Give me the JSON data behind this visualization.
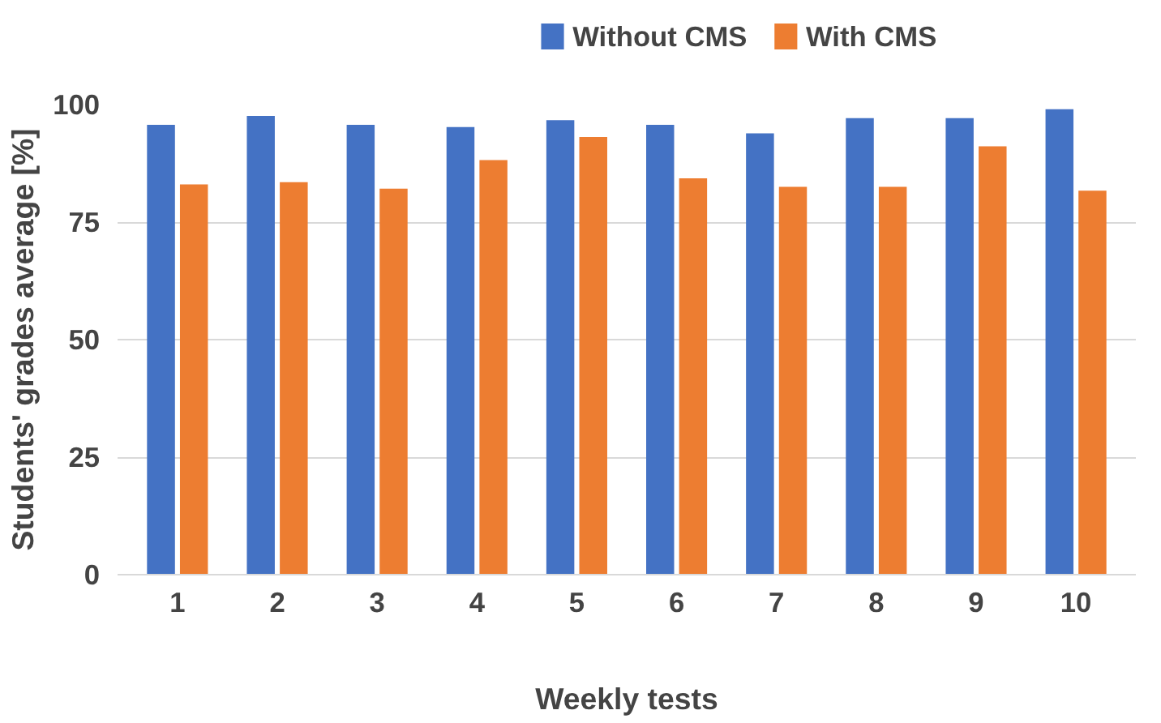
{
  "chart_data": {
    "type": "bar",
    "xlabel": "Weekly tests",
    "ylabel": "Students' grades average [%]",
    "categories": [
      "1",
      "2",
      "3",
      "4",
      "5",
      "6",
      "7",
      "8",
      "9",
      "10"
    ],
    "series": [
      {
        "name": "Without  CMS",
        "color": "#4472c4",
        "values": [
          95.7,
          97.6,
          95.7,
          95.2,
          96.7,
          95.7,
          93.9,
          97.1,
          97.1,
          99.0
        ]
      },
      {
        "name": "With CMS",
        "color": "#ed7d31",
        "values": [
          83.0,
          83.5,
          82.1,
          88.2,
          93.1,
          84.3,
          82.5,
          82.5,
          91.1,
          81.7
        ]
      }
    ],
    "ylim": [
      0,
      100
    ],
    "yticks": [
      0,
      25,
      50,
      75,
      100
    ],
    "grid": "y",
    "legend": "top"
  }
}
